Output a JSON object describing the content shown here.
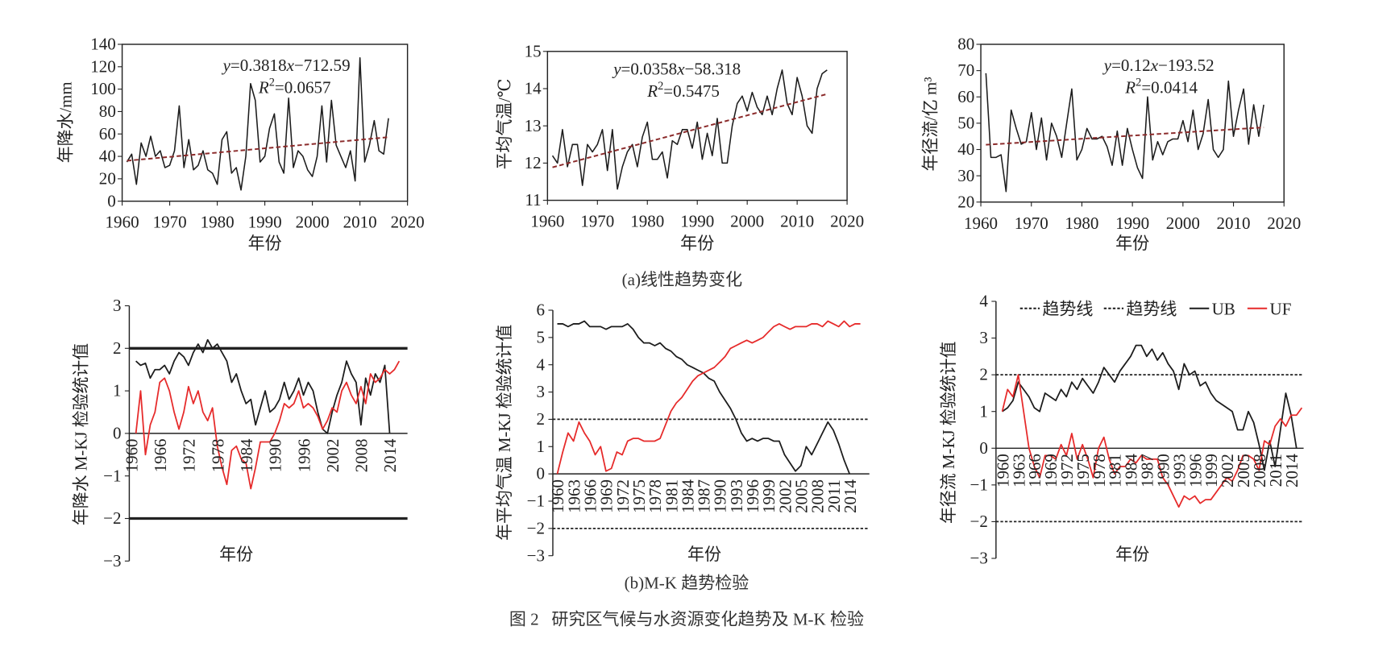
{
  "figure": {
    "panel_a_caption": "(a)线性趋势变化",
    "panel_b_caption": "(b)M-K 趋势检验",
    "caption": "图 2   研究区气候与水资源变化趋势及 M-K 检验"
  },
  "colors": {
    "axis": "#222222",
    "series_black": "#1c1c1c",
    "trend": "#8b2b2b",
    "uf": "#e62a2a"
  },
  "chart_data": [
    {
      "id": "precip-trend",
      "type": "line",
      "ylabel": "年降水/mm",
      "xlabel": "年份",
      "xlim": [
        1960,
        2020
      ],
      "ylim": [
        0,
        140
      ],
      "xticks": [
        1960,
        1970,
        1980,
        1990,
        2000,
        2010,
        2020
      ],
      "yticklabels": [
        "0",
        "20",
        "40",
        "60",
        "80",
        "100",
        "120",
        "140"
      ],
      "equation_parts": [
        "y",
        "=0.3818",
        "x",
        "−712.59"
      ],
      "r2_parts": [
        "R",
        "2",
        "=0.0657"
      ],
      "trend": {
        "slope": 0.3818,
        "intercept": -712.59
      },
      "series": [
        {
          "name": "年降水",
          "x_start": 1961,
          "values": [
            35,
            42,
            15,
            52,
            40,
            58,
            40,
            45,
            30,
            32,
            45,
            85,
            30,
            55,
            28,
            32,
            45,
            28,
            25,
            15,
            55,
            62,
            25,
            30,
            10,
            40,
            105,
            90,
            35,
            40,
            65,
            78,
            35,
            25,
            92,
            30,
            45,
            40,
            28,
            22,
            40,
            85,
            35,
            90,
            50,
            40,
            30,
            45,
            18,
            128,
            35,
            50,
            72,
            45,
            42,
            74
          ]
        }
      ]
    },
    {
      "id": "temp-trend",
      "type": "line",
      "ylabel": "平均气温/℃",
      "xlabel": "年份",
      "xlim": [
        1960,
        2020
      ],
      "ylim": [
        11,
        15
      ],
      "xticks": [
        1960,
        1970,
        1980,
        1990,
        2000,
        2010,
        2020
      ],
      "yticklabels": [
        "11",
        "12",
        "13",
        "14",
        "15"
      ],
      "equation_parts": [
        "y",
        "=0.0358",
        "x",
        "−58.318"
      ],
      "r2_parts": [
        "R",
        "2",
        "=0.5475"
      ],
      "trend": {
        "slope": 0.0358,
        "intercept": -58.318
      },
      "series": [
        {
          "name": "平均气温",
          "x_start": 1961,
          "values": [
            12.2,
            12.0,
            12.9,
            11.9,
            12.5,
            12.5,
            11.4,
            12.5,
            12.3,
            12.5,
            12.9,
            11.8,
            12.9,
            11.3,
            11.9,
            12.3,
            12.5,
            11.9,
            12.7,
            13.1,
            12.1,
            12.1,
            12.3,
            11.6,
            12.6,
            12.5,
            12.9,
            12.9,
            12.4,
            13.1,
            12.1,
            12.8,
            12.2,
            13.2,
            12.0,
            12.0,
            13.0,
            13.6,
            13.8,
            13.4,
            13.9,
            13.5,
            13.3,
            13.8,
            13.3,
            14.0,
            14.5,
            13.6,
            13.3,
            14.3,
            13.8,
            13.0,
            12.8,
            14.0,
            14.4,
            14.5
          ]
        }
      ]
    },
    {
      "id": "runoff-trend",
      "type": "line",
      "ylabel": "年径流/亿 m³",
      "xlabel": "年份",
      "xlim": [
        1960,
        2020
      ],
      "ylim": [
        20,
        80
      ],
      "xticks": [
        1960,
        1970,
        1980,
        1990,
        2000,
        2010,
        2020
      ],
      "yticklabels": [
        "20",
        "30",
        "40",
        "50",
        "60",
        "70",
        "80"
      ],
      "equation_parts": [
        "y",
        "=0.12",
        "x",
        "−193.52"
      ],
      "r2_parts": [
        "R",
        "2",
        "=0.0414"
      ],
      "trend": {
        "slope": 0.12,
        "intercept": -193.52
      },
      "series": [
        {
          "name": "年径流",
          "x_start": 1961,
          "values": [
            69,
            37,
            37,
            38,
            24,
            55,
            48,
            42,
            43,
            54,
            40,
            52,
            36,
            50,
            45,
            37,
            50,
            63,
            36,
            40,
            48,
            44,
            44,
            45,
            41,
            34,
            47,
            34,
            48,
            40,
            33,
            29,
            60,
            36,
            43,
            38,
            43,
            44,
            44,
            51,
            43,
            55,
            40,
            46,
            59,
            40,
            37,
            40,
            66,
            45,
            55,
            63,
            42,
            57,
            45,
            57
          ]
        }
      ]
    },
    {
      "id": "precip-mk",
      "type": "line",
      "ylabel": "年降水 M-KJ 检验统计值",
      "xlabel": "年份",
      "ylim": [
        -3,
        3
      ],
      "thresholds": [
        2,
        -2
      ],
      "yticklabels": [
        "3",
        "2",
        "1",
        "0",
        "−1",
        "−2",
        "−3"
      ],
      "xticks": [
        1960,
        1966,
        1972,
        1978,
        1984,
        1990,
        1996,
        2002,
        2008,
        2014
      ],
      "series": [
        {
          "name": "UB",
          "x_start": 1961,
          "values": [
            1.7,
            1.6,
            1.65,
            1.3,
            1.5,
            1.5,
            1.6,
            1.4,
            1.7,
            1.9,
            1.8,
            1.6,
            1.9,
            2.1,
            1.9,
            2.2,
            2.0,
            2.1,
            1.9,
            1.7,
            1.2,
            1.4,
            1.0,
            0.7,
            0.8,
            0.2,
            0.6,
            1.0,
            0.5,
            0.6,
            0.8,
            1.2,
            0.8,
            1.0,
            1.3,
            0.9,
            1.2,
            1.0,
            0.5,
            0.1,
            0.0,
            0.5,
            0.9,
            1.2,
            1.7,
            1.4,
            1.2,
            0.2,
            1.3,
            0.9,
            1.4,
            1.2,
            1.6,
            0.0
          ]
        },
        {
          "name": "UF",
          "x_start": 1961,
          "values": [
            0,
            1.0,
            -0.5,
            0.2,
            0.5,
            1.2,
            1.3,
            1.0,
            0.5,
            0.1,
            0.5,
            1.1,
            0.7,
            1.0,
            0.5,
            0.3,
            0.6,
            -0.3,
            -0.8,
            -1.2,
            -0.4,
            -0.3,
            -0.6,
            -0.7,
            -1.3,
            -0.8,
            -0.2,
            -0.2,
            -0.2,
            0.0,
            0.3,
            0.7,
            0.6,
            0.7,
            1.0,
            0.6,
            0.7,
            0.6,
            0.4,
            0.1,
            0.3,
            0.6,
            0.5,
            1.0,
            1.2,
            0.9,
            0.7,
            1.1,
            0.7,
            1.4,
            1.2,
            1.3,
            1.5,
            1.4,
            1.5,
            1.7
          ]
        }
      ]
    },
    {
      "id": "temp-mk",
      "type": "line",
      "ylabel": "年平均气温 M-KJ 检验统计值",
      "xlabel": "年份",
      "ylim": [
        -3,
        6
      ],
      "thresholds": [
        2,
        -2
      ],
      "yticklabels": [
        "6",
        "5",
        "4",
        "3",
        "2",
        "1",
        "0",
        "−1",
        "−2",
        "−3"
      ],
      "xticks": [
        1960,
        1963,
        1966,
        1969,
        1972,
        1975,
        1978,
        1981,
        1984,
        1987,
        1990,
        1993,
        1996,
        1999,
        2002,
        2005,
        2008,
        2011,
        2014
      ],
      "series": [
        {
          "name": "UB",
          "x_start": 1960,
          "values": [
            5.5,
            5.5,
            5.4,
            5.5,
            5.5,
            5.6,
            5.4,
            5.4,
            5.4,
            5.3,
            5.4,
            5.4,
            5.4,
            5.5,
            5.3,
            5.0,
            4.8,
            4.8,
            4.7,
            4.8,
            4.6,
            4.5,
            4.3,
            4.2,
            4.0,
            3.9,
            3.8,
            3.7,
            3.5,
            3.4,
            3.0,
            2.7,
            2.4,
            2.0,
            1.5,
            1.2,
            1.3,
            1.2,
            1.3,
            1.3,
            1.2,
            1.2,
            0.7,
            0.4,
            0.1,
            0.3,
            1.0,
            0.7,
            1.1,
            1.5,
            1.9,
            1.6,
            1.1,
            0.5,
            0.0
          ]
        },
        {
          "name": "UF",
          "x_start": 1960,
          "values": [
            0,
            0.8,
            1.5,
            1.2,
            1.9,
            1.5,
            1.2,
            0.7,
            1.0,
            0.1,
            0.2,
            0.8,
            0.7,
            1.2,
            1.3,
            1.3,
            1.2,
            1.2,
            1.2,
            1.3,
            1.8,
            2.3,
            2.6,
            2.8,
            3.1,
            3.4,
            3.6,
            3.7,
            3.8,
            3.9,
            4.1,
            4.3,
            4.6,
            4.7,
            4.8,
            4.9,
            4.8,
            4.9,
            5.0,
            5.2,
            5.4,
            5.5,
            5.4,
            5.3,
            5.4,
            5.4,
            5.4,
            5.5,
            5.5,
            5.4,
            5.6,
            5.5,
            5.4,
            5.6,
            5.4,
            5.5,
            5.5
          ]
        }
      ]
    },
    {
      "id": "runoff-mk",
      "type": "line",
      "ylabel": "年径流 M-KJ 检验统计值",
      "xlabel": "年份",
      "ylim": [
        -3,
        4
      ],
      "thresholds": [
        2,
        -2
      ],
      "yticklabels": [
        "4",
        "3",
        "2",
        "1",
        "0",
        "−1",
        "−2",
        "−3"
      ],
      "xticks": [
        1960,
        1963,
        1966,
        1969,
        1972,
        1975,
        1978,
        1981,
        1984,
        1987,
        1990,
        1993,
        1996,
        1999,
        2002,
        2005,
        2008,
        2011,
        2014
      ],
      "legend": [
        "趋势线",
        "趋势线",
        "UB",
        "UF"
      ],
      "legend_position": "top",
      "series": [
        {
          "name": "UB",
          "x_start": 1960,
          "values": [
            1.0,
            1.1,
            1.3,
            1.8,
            1.6,
            1.4,
            1.1,
            1.0,
            1.5,
            1.4,
            1.3,
            1.6,
            1.4,
            1.8,
            1.6,
            1.9,
            1.7,
            1.5,
            1.8,
            2.2,
            2.0,
            1.8,
            2.1,
            2.3,
            2.5,
            2.8,
            2.8,
            2.5,
            2.7,
            2.4,
            2.6,
            2.3,
            2.1,
            1.6,
            2.3,
            2.0,
            2.1,
            1.7,
            1.8,
            1.5,
            1.3,
            1.2,
            1.1,
            1.0,
            0.5,
            0.5,
            1.0,
            0.7,
            0.1,
            -0.6,
            0.2,
            -0.5,
            0.5,
            1.5,
            0.9,
            0.0
          ]
        },
        {
          "name": "UF",
          "x_start": 1960,
          "values": [
            1.0,
            1.6,
            1.4,
            2.0,
            1.0,
            0.0,
            -0.5,
            -0.8,
            -0.2,
            -0.2,
            -0.3,
            0.1,
            -0.2,
            0.4,
            -0.3,
            0.1,
            -0.3,
            -0.8,
            0.0,
            0.3,
            -0.3,
            -0.7,
            -0.5,
            -0.5,
            -0.3,
            -0.4,
            -0.2,
            -0.3,
            -0.3,
            -0.3,
            -0.8,
            -1.0,
            -1.3,
            -1.6,
            -1.3,
            -1.4,
            -1.3,
            -1.5,
            -1.4,
            -1.4,
            -1.2,
            -1.0,
            -0.8,
            -0.9,
            -0.6,
            -0.2,
            -0.2,
            -0.3,
            -0.6,
            0.2,
            0.1,
            0.6,
            0.8,
            0.6,
            0.9,
            0.9,
            1.1
          ]
        }
      ]
    }
  ]
}
